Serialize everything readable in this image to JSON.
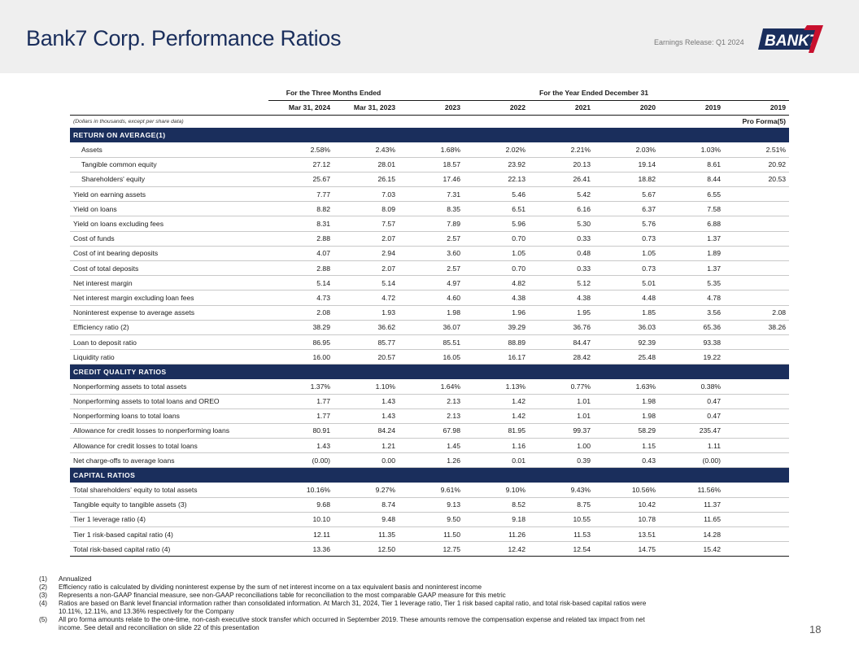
{
  "header": {
    "title": "Bank7 Corp. Performance Ratios",
    "release": "Earnings Release: Q1 2024",
    "logo_text": "BANK7",
    "colors": {
      "navy": "#1a2e5c",
      "red": "#c8102e"
    }
  },
  "table": {
    "group_headers": {
      "quarter": "For the Three Months Ended",
      "year": "For the Year Ended December 31"
    },
    "columns": [
      "Mar 31, 2024",
      "Mar 31, 2023",
      "2023",
      "2022",
      "2021",
      "2020",
      "2019",
      "2019"
    ],
    "note": "(Dollars in thousands, except per share data)",
    "pro_forma_label": "Pro Forma(5)",
    "sections": [
      {
        "title": "RETURN ON AVERAGE(1)",
        "rows": [
          {
            "label": "Assets",
            "indent": true,
            "values": [
              "2.58%",
              "2.43%",
              "1.68%",
              "2.02%",
              "2.21%",
              "2.03%",
              "1.03%",
              "2.51%"
            ]
          },
          {
            "label": "Tangible common equity",
            "indent": true,
            "values": [
              "27.12",
              "28.01",
              "18.57",
              "23.92",
              "20.13",
              "19.14",
              "8.61",
              "20.92"
            ]
          },
          {
            "label": "Shareholders' equity",
            "indent": true,
            "values": [
              "25.67",
              "26.15",
              "17.46",
              "22.13",
              "26.41",
              "18.82",
              "8.44",
              "20.53"
            ]
          },
          {
            "label": "Yield on earning assets",
            "indent": false,
            "values": [
              "7.77",
              "7.03",
              "7.31",
              "5.46",
              "5.42",
              "5.67",
              "6.55",
              ""
            ]
          },
          {
            "label": "Yield on loans",
            "indent": false,
            "values": [
              "8.82",
              "8.09",
              "8.35",
              "6.51",
              "6.16",
              "6.37",
              "7.58",
              ""
            ]
          },
          {
            "label": "Yield on loans excluding fees",
            "indent": false,
            "values": [
              "8.31",
              "7.57",
              "7.89",
              "5.96",
              "5.30",
              "5.76",
              "6.88",
              ""
            ]
          },
          {
            "label": "Cost of funds",
            "indent": false,
            "values": [
              "2.88",
              "2.07",
              "2.57",
              "0.70",
              "0.33",
              "0.73",
              "1.37",
              ""
            ]
          },
          {
            "label": "Cost of int bearing deposits",
            "indent": false,
            "values": [
              "4.07",
              "2.94",
              "3.60",
              "1.05",
              "0.48",
              "1.05",
              "1.89",
              ""
            ]
          },
          {
            "label": "Cost of total deposits",
            "indent": false,
            "values": [
              "2.88",
              "2.07",
              "2.57",
              "0.70",
              "0.33",
              "0.73",
              "1.37",
              ""
            ]
          },
          {
            "label": "Net interest margin",
            "indent": false,
            "values": [
              "5.14",
              "5.14",
              "4.97",
              "4.82",
              "5.12",
              "5.01",
              "5.35",
              ""
            ]
          },
          {
            "label": "Net interest margin excluding loan fees",
            "indent": false,
            "values": [
              "4.73",
              "4.72",
              "4.60",
              "4.38",
              "4.38",
              "4.48",
              "4.78",
              ""
            ]
          },
          {
            "label": "Noninterest expense to average assets",
            "indent": false,
            "values": [
              "2.08",
              "1.93",
              "1.98",
              "1.96",
              "1.95",
              "1.85",
              "3.56",
              "2.08"
            ]
          },
          {
            "label": "Efficiency ratio (2)",
            "indent": false,
            "values": [
              "38.29",
              "36.62",
              "36.07",
              "39.29",
              "36.76",
              "36.03",
              "65.36",
              "38.26"
            ]
          },
          {
            "label": "Loan to deposit ratio",
            "indent": false,
            "values": [
              "86.95",
              "85.77",
              "85.51",
              "88.89",
              "84.47",
              "92.39",
              "93.38",
              ""
            ]
          },
          {
            "label": "Liquidity ratio",
            "indent": false,
            "values": [
              "16.00",
              "20.57",
              "16.05",
              "16.17",
              "28.42",
              "25.48",
              "19.22",
              ""
            ]
          }
        ]
      },
      {
        "title": "CREDIT QUALITY RATIOS",
        "rows": [
          {
            "label": "Nonperforming assets to total assets",
            "indent": false,
            "values": [
              "1.37%",
              "1.10%",
              "1.64%",
              "1.13%",
              "0.77%",
              "1.63%",
              "0.38%",
              ""
            ]
          },
          {
            "label": "Nonperforming assets to total loans and OREO",
            "indent": false,
            "values": [
              "1.77",
              "1.43",
              "2.13",
              "1.42",
              "1.01",
              "1.98",
              "0.47",
              ""
            ]
          },
          {
            "label": "Nonperforming loans to total loans",
            "indent": false,
            "values": [
              "1.77",
              "1.43",
              "2.13",
              "1.42",
              "1.01",
              "1.98",
              "0.47",
              ""
            ]
          },
          {
            "label": "Allowance for credit losses to nonperforming loans",
            "indent": false,
            "values": [
              "80.91",
              "84.24",
              "67.98",
              "81.95",
              "99.37",
              "58.29",
              "235.47",
              ""
            ]
          },
          {
            "label": "Allowance for credit losses to total loans",
            "indent": false,
            "values": [
              "1.43",
              "1.21",
              "1.45",
              "1.16",
              "1.00",
              "1.15",
              "1.11",
              ""
            ]
          },
          {
            "label": "Net charge-offs to average loans",
            "indent": false,
            "values": [
              "(0.00)",
              "0.00",
              "1.26",
              "0.01",
              "0.39",
              "0.43",
              "(0.00)",
              ""
            ]
          }
        ]
      },
      {
        "title": "CAPITAL RATIOS",
        "rows": [
          {
            "label": "Total shareholders' equity to total assets",
            "indent": false,
            "values": [
              "10.16%",
              "9.27%",
              "9.61%",
              "9.10%",
              "9.43%",
              "10.56%",
              "11.56%",
              ""
            ]
          },
          {
            "label": "Tangible equity to tangible assets (3)",
            "indent": false,
            "values": [
              "9.68",
              "8.74",
              "9.13",
              "8.52",
              "8.75",
              "10.42",
              "11.37",
              ""
            ]
          },
          {
            "label": "Tier 1 leverage ratio (4)",
            "indent": false,
            "values": [
              "10.10",
              "9.48",
              "9.50",
              "9.18",
              "10.55",
              "10.78",
              "11.65",
              ""
            ]
          },
          {
            "label": "Tier 1 risk-based capital ratio (4)",
            "indent": false,
            "values": [
              "12.11",
              "11.35",
              "11.50",
              "11.26",
              "11.53",
              "13.51",
              "14.28",
              ""
            ]
          },
          {
            "label": "Total risk-based capital ratio (4)",
            "indent": false,
            "values": [
              "13.36",
              "12.50",
              "12.75",
              "12.42",
              "12.54",
              "14.75",
              "15.42",
              ""
            ]
          }
        ]
      }
    ]
  },
  "footnotes": [
    {
      "num": "(1)",
      "text": "Annualized"
    },
    {
      "num": "(2)",
      "text": "Efficiency ratio is calculated by dividing noninterest expense by the sum of net interest income on a tax equivalent basis and noninterest income"
    },
    {
      "num": "(3)",
      "text": "Represents a non-GAAP financial measure, see non-GAAP reconciliations table for reconciliation to the most comparable GAAP measure for this metric"
    },
    {
      "num": "(4)",
      "text": "Ratios are based on Bank level financial information rather than consolidated information. At March 31, 2024, Tier 1 leverage ratio, Tier 1 risk based capital ratio, and total risk-based capital ratios were 10.11%, 12.11%, and 13.36% respectively for the Company"
    },
    {
      "num": "(5)",
      "text": "All pro forma amounts relate to the one-time, non-cash executive stock transfer which occurred in September 2019.  These amounts remove the compensation expense and related tax impact from net income.  See detail and reconciliation on slide 22 of this presentation"
    }
  ],
  "page_number": "18"
}
